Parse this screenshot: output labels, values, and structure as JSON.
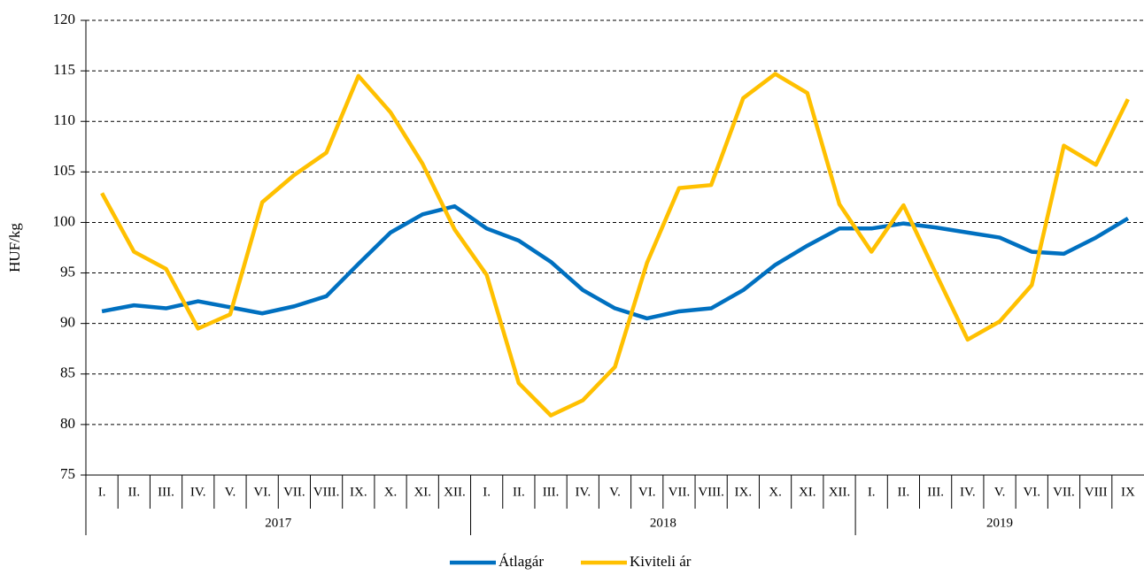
{
  "chart_data": {
    "type": "line",
    "y_label": "HUF/kg",
    "categories": [
      "I.",
      "II.",
      "III.",
      "IV.",
      "V.",
      "VI.",
      "VII.",
      "VIII.",
      "IX.",
      "X.",
      "XI.",
      "XII.",
      "I.",
      "II.",
      "III.",
      "IV.",
      "V.",
      "VI.",
      "VII.",
      "VIII.",
      "IX.",
      "X.",
      "XI.",
      "XII.",
      "I.",
      "II.",
      "III.",
      "IV.",
      "V.",
      "VI.",
      "VII.",
      "VIII",
      "IX"
    ],
    "category_groups": [
      "2017",
      "2018",
      "2019"
    ],
    "series": [
      {
        "name": "Átlagár",
        "color": "#0070C0",
        "values": [
          91.2,
          91.8,
          91.5,
          92.2,
          91.6,
          91.0,
          91.7,
          92.7,
          95.9,
          99.0,
          100.8,
          101.6,
          99.4,
          98.2,
          96.1,
          93.3,
          91.5,
          90.5,
          91.2,
          91.5,
          93.3,
          95.8,
          97.7,
          99.4,
          99.4,
          99.9,
          99.5,
          99.0,
          98.5,
          97.1,
          96.9,
          98.5,
          100.4
        ]
      },
      {
        "name": "Kiviteli ár",
        "color": "#FFC000",
        "values": [
          102.9,
          97.1,
          95.4,
          89.5,
          90.9,
          102.0,
          104.7,
          106.9,
          114.5,
          110.9,
          105.8,
          99.3,
          94.8,
          84.1,
          80.9,
          82.4,
          85.7,
          96.0,
          103.4,
          103.7,
          112.3,
          114.7,
          112.8,
          101.8,
          97.1,
          101.7,
          95.0,
          88.4,
          90.2,
          93.8,
          107.6,
          105.7,
          112.2
        ]
      }
    ],
    "ylim": [
      75,
      120
    ],
    "yticks": [
      75,
      80,
      85,
      90,
      95,
      100,
      105,
      110,
      115,
      120
    ],
    "grid": true,
    "legend": "bottom"
  }
}
